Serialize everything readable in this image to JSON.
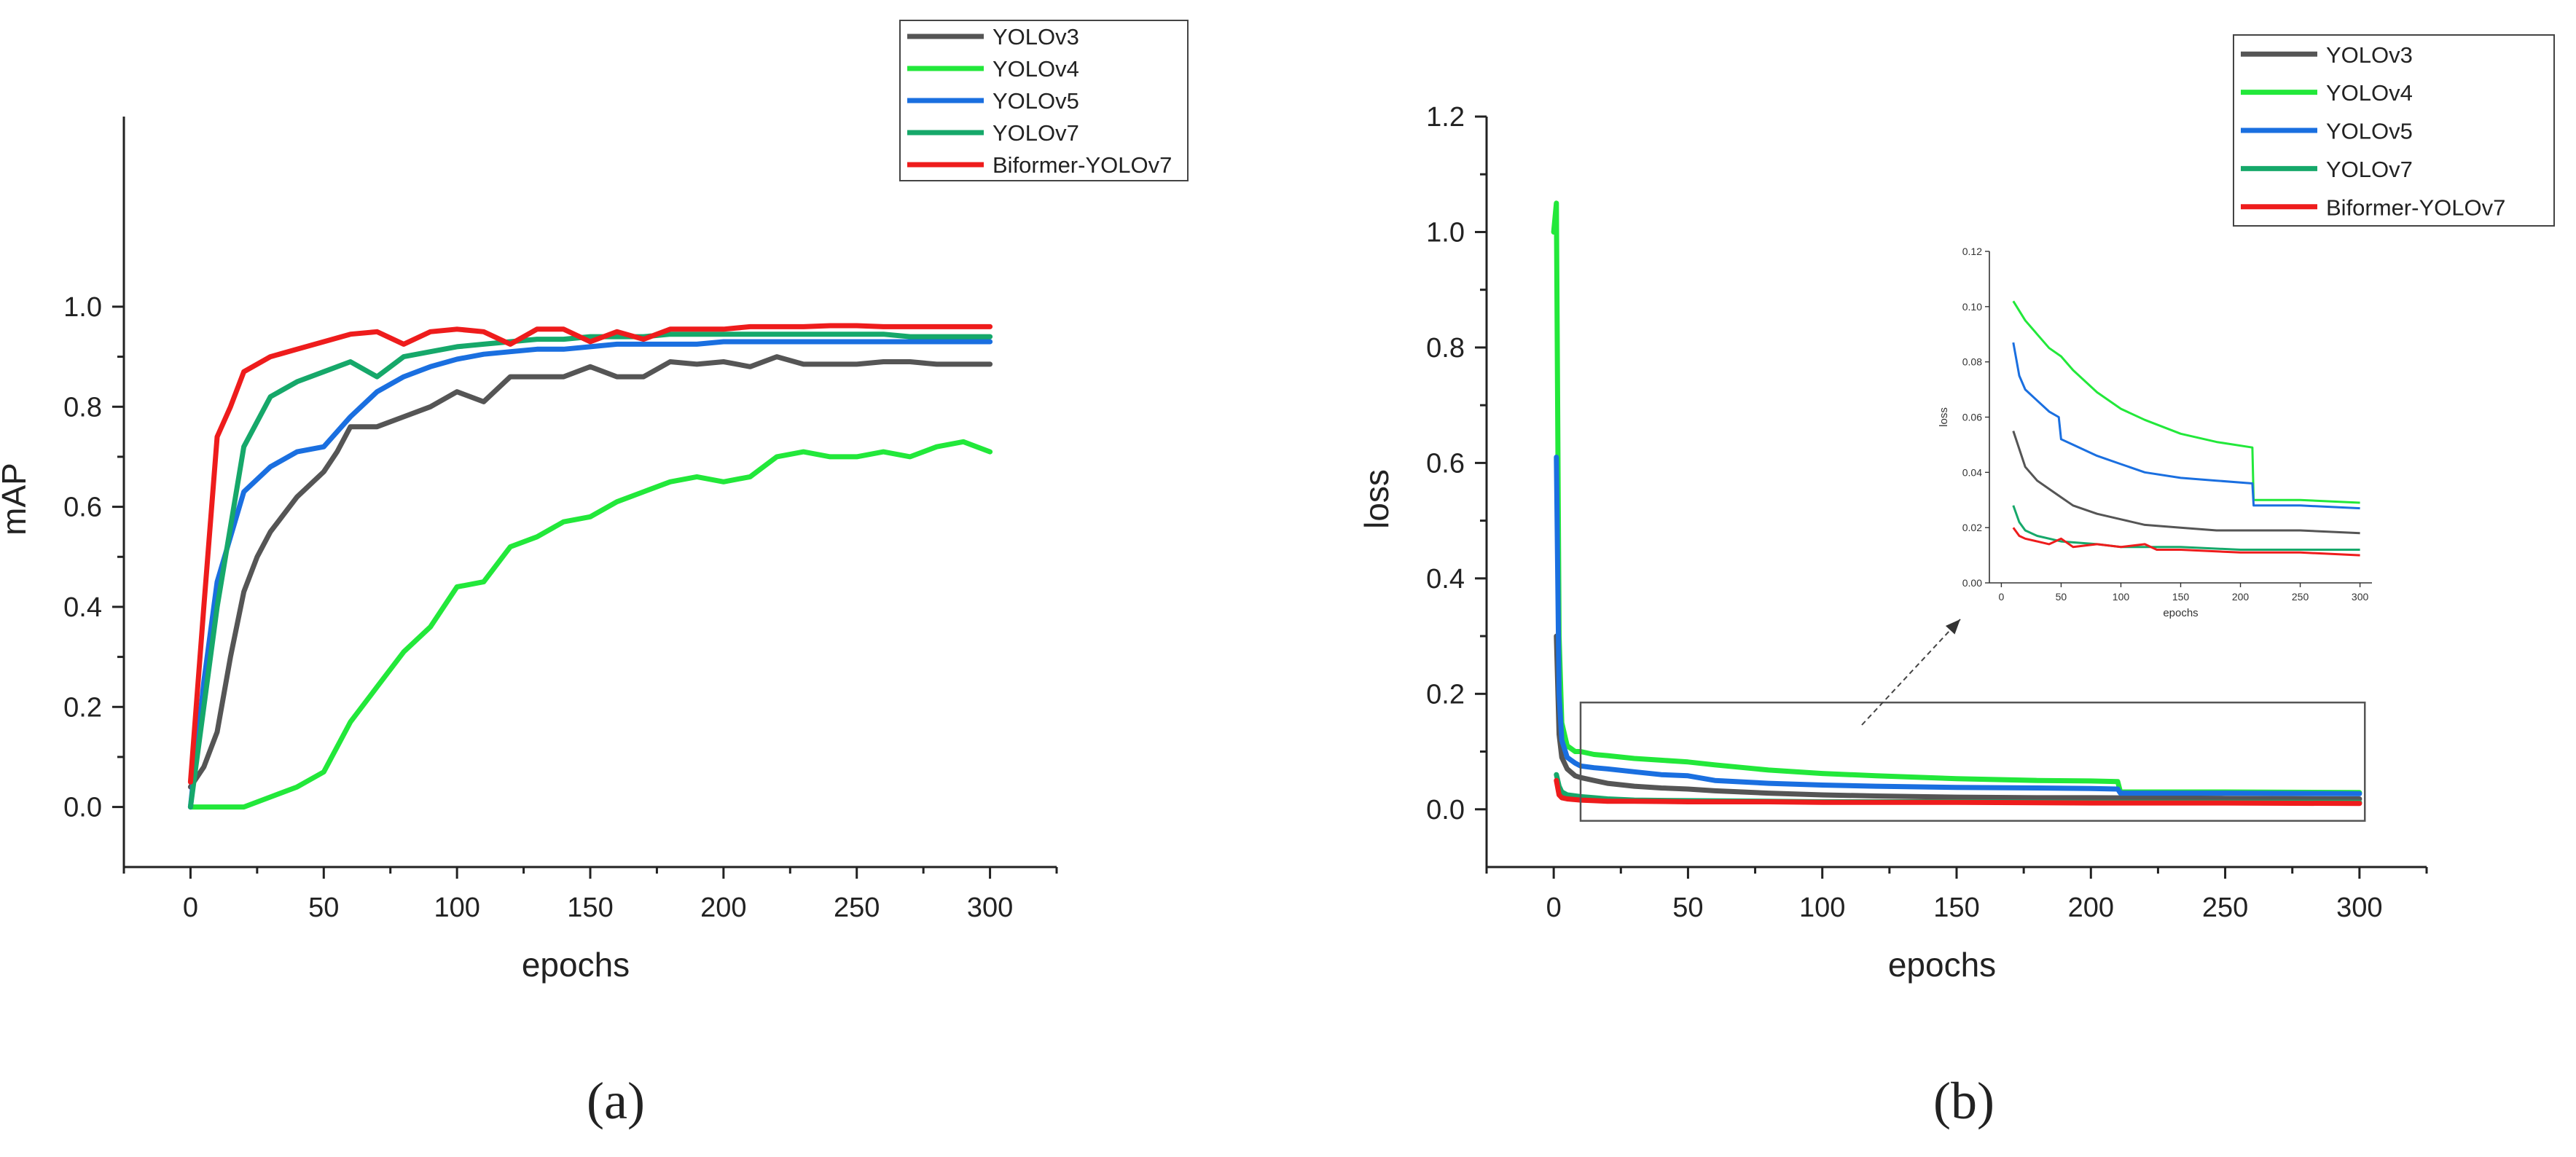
{
  "captions": [
    "(a)",
    "(b)"
  ],
  "colors": {
    "YOLOv3": "#555555",
    "YOLOv4": "#22e83a",
    "YOLOv5": "#1a6fe0",
    "YOLOv7": "#16a86a",
    "Biformer-YOLOv7": "#ee1c1c"
  },
  "chart_data": [
    {
      "type": "line",
      "id": "a",
      "title": "",
      "xlabel": "epochs",
      "ylabel": "mAP",
      "xlim": [
        -25,
        325
      ],
      "ylim": [
        -0.12,
        1.38
      ],
      "xticks": [
        0,
        50,
        100,
        150,
        200,
        250,
        300
      ],
      "yticks": [
        0.0,
        0.2,
        0.4,
        0.6,
        0.8,
        1.0
      ],
      "ytick_labels": [
        "0.0",
        "0.2",
        "0.4",
        "0.6",
        "0.8",
        "1.0"
      ],
      "legend_position": "top-right",
      "legend": [
        "YOLOv3",
        "YOLOv4",
        "YOLOv5",
        "YOLOv7",
        "Biformer-YOLOv7"
      ],
      "series": [
        {
          "name": "YOLOv3",
          "x": [
            0,
            5,
            10,
            15,
            20,
            25,
            30,
            40,
            50,
            55,
            60,
            70,
            80,
            90,
            100,
            110,
            120,
            130,
            140,
            150,
            160,
            170,
            180,
            190,
            200,
            210,
            220,
            230,
            240,
            250,
            260,
            270,
            280,
            290,
            300
          ],
          "y": [
            0.04,
            0.08,
            0.15,
            0.3,
            0.43,
            0.5,
            0.55,
            0.62,
            0.67,
            0.71,
            0.76,
            0.76,
            0.78,
            0.8,
            0.83,
            0.81,
            0.86,
            0.86,
            0.86,
            0.88,
            0.86,
            0.86,
            0.89,
            0.885,
            0.89,
            0.88,
            0.9,
            0.885,
            0.885,
            0.885,
            0.89,
            0.89,
            0.885,
            0.885,
            0.885
          ]
        },
        {
          "name": "YOLOv4",
          "x": [
            0,
            10,
            20,
            30,
            40,
            50,
            55,
            60,
            70,
            80,
            90,
            100,
            110,
            120,
            130,
            140,
            150,
            160,
            170,
            180,
            190,
            200,
            210,
            220,
            230,
            240,
            250,
            260,
            270,
            280,
            290,
            300
          ],
          "y": [
            0.0,
            0.0,
            0.0,
            0.02,
            0.04,
            0.07,
            0.12,
            0.17,
            0.24,
            0.31,
            0.36,
            0.44,
            0.45,
            0.52,
            0.54,
            0.57,
            0.58,
            0.61,
            0.63,
            0.65,
            0.66,
            0.65,
            0.66,
            0.7,
            0.71,
            0.7,
            0.7,
            0.71,
            0.7,
            0.72,
            0.73,
            0.71
          ]
        },
        {
          "name": "YOLOv5",
          "x": [
            0,
            5,
            10,
            20,
            30,
            40,
            50,
            60,
            70,
            80,
            90,
            100,
            110,
            120,
            130,
            140,
            150,
            160,
            170,
            180,
            190,
            200,
            210,
            220,
            230,
            240,
            250,
            260,
            270,
            280,
            290,
            300
          ],
          "y": [
            0.0,
            0.25,
            0.45,
            0.63,
            0.68,
            0.71,
            0.72,
            0.78,
            0.83,
            0.86,
            0.88,
            0.895,
            0.905,
            0.91,
            0.915,
            0.915,
            0.92,
            0.925,
            0.925,
            0.925,
            0.925,
            0.93,
            0.93,
            0.93,
            0.93,
            0.93,
            0.93,
            0.93,
            0.93,
            0.93,
            0.93,
            0.93
          ]
        },
        {
          "name": "YOLOv7",
          "x": [
            0,
            10,
            20,
            30,
            40,
            50,
            60,
            70,
            80,
            90,
            100,
            110,
            120,
            130,
            140,
            150,
            160,
            170,
            180,
            190,
            200,
            210,
            220,
            230,
            240,
            250,
            260,
            270,
            280,
            290,
            300
          ],
          "y": [
            0.0,
            0.4,
            0.72,
            0.82,
            0.85,
            0.87,
            0.89,
            0.86,
            0.9,
            0.91,
            0.92,
            0.925,
            0.93,
            0.935,
            0.935,
            0.94,
            0.94,
            0.94,
            0.945,
            0.945,
            0.945,
            0.945,
            0.945,
            0.945,
            0.945,
            0.945,
            0.945,
            0.94,
            0.94,
            0.94,
            0.94
          ]
        },
        {
          "name": "Biformer-YOLOv7",
          "x": [
            0,
            5,
            10,
            15,
            20,
            30,
            40,
            50,
            60,
            70,
            80,
            90,
            100,
            110,
            120,
            130,
            140,
            150,
            160,
            170,
            180,
            190,
            200,
            210,
            220,
            230,
            240,
            250,
            260,
            270,
            280,
            290,
            300
          ],
          "y": [
            0.05,
            0.4,
            0.74,
            0.8,
            0.87,
            0.9,
            0.915,
            0.93,
            0.945,
            0.95,
            0.925,
            0.95,
            0.955,
            0.95,
            0.925,
            0.955,
            0.955,
            0.93,
            0.95,
            0.935,
            0.955,
            0.955,
            0.955,
            0.96,
            0.96,
            0.96,
            0.962,
            0.962,
            0.96,
            0.96,
            0.96,
            0.96,
            0.96
          ]
        }
      ]
    },
    {
      "type": "line",
      "id": "b",
      "title": "",
      "xlabel": "epochs",
      "ylabel": "loss",
      "xlim": [
        -25,
        325
      ],
      "ylim": [
        -0.1,
        1.2
      ],
      "xticks": [
        0,
        50,
        100,
        150,
        200,
        250,
        300
      ],
      "yticks": [
        0.0,
        0.2,
        0.4,
        0.6,
        0.8,
        1.0,
        1.2
      ],
      "ytick_labels": [
        "0.0",
        "0.2",
        "0.4",
        "0.6",
        "0.8",
        "1.0",
        "1.2"
      ],
      "legend_position": "top-right",
      "legend": [
        "YOLOv3",
        "YOLOv4",
        "YOLOv5",
        "YOLOv7",
        "Biformer-YOLOv7"
      ],
      "series": [
        {
          "name": "YOLOv3",
          "x": [
            1,
            2,
            3,
            5,
            8,
            10,
            15,
            20,
            30,
            40,
            50,
            60,
            80,
            100,
            120,
            150,
            180,
            200,
            250,
            300
          ],
          "y": [
            0.3,
            0.13,
            0.09,
            0.07,
            0.058,
            0.055,
            0.05,
            0.045,
            0.04,
            0.037,
            0.035,
            0.032,
            0.028,
            0.025,
            0.023,
            0.021,
            0.02,
            0.02,
            0.019,
            0.018
          ]
        },
        {
          "name": "YOLOv4",
          "x": [
            0,
            1,
            2,
            3,
            5,
            8,
            10,
            15,
            20,
            30,
            40,
            50,
            60,
            80,
            100,
            120,
            150,
            180,
            200,
            210,
            211,
            250,
            300
          ],
          "y": [
            1.0,
            1.05,
            0.3,
            0.15,
            0.11,
            0.1,
            0.1,
            0.095,
            0.093,
            0.088,
            0.085,
            0.082,
            0.077,
            0.068,
            0.062,
            0.058,
            0.053,
            0.05,
            0.049,
            0.048,
            0.03,
            0.03,
            0.029
          ]
        },
        {
          "name": "YOLOv5",
          "x": [
            1,
            2,
            3,
            5,
            8,
            10,
            15,
            20,
            30,
            40,
            50,
            60,
            80,
            100,
            120,
            150,
            180,
            200,
            210,
            211,
            250,
            300
          ],
          "y": [
            0.61,
            0.2,
            0.12,
            0.09,
            0.08,
            0.075,
            0.072,
            0.07,
            0.065,
            0.06,
            0.058,
            0.05,
            0.045,
            0.042,
            0.04,
            0.038,
            0.037,
            0.036,
            0.035,
            0.028,
            0.028,
            0.027
          ]
        },
        {
          "name": "YOLOv7",
          "x": [
            1,
            2,
            3,
            5,
            10,
            15,
            20,
            30,
            50,
            80,
            100,
            150,
            200,
            250,
            300
          ],
          "y": [
            0.06,
            0.04,
            0.03,
            0.025,
            0.022,
            0.02,
            0.018,
            0.016,
            0.015,
            0.014,
            0.013,
            0.013,
            0.012,
            0.012,
            0.012
          ]
        },
        {
          "name": "Biformer-YOLOv7",
          "x": [
            1,
            2,
            3,
            5,
            10,
            15,
            20,
            30,
            50,
            80,
            100,
            150,
            200,
            250,
            300
          ],
          "y": [
            0.05,
            0.025,
            0.02,
            0.018,
            0.016,
            0.015,
            0.014,
            0.014,
            0.013,
            0.013,
            0.012,
            0.012,
            0.011,
            0.011,
            0.01
          ]
        }
      ],
      "inset": {
        "xlabel": "epochs",
        "ylabel": "loss",
        "xlim": [
          -10,
          310
        ],
        "ylim": [
          0.0,
          0.12
        ],
        "xticks": [
          0,
          50,
          100,
          150,
          200,
          250,
          300
        ],
        "yticks": [
          0.0,
          0.02,
          0.04,
          0.06,
          0.08,
          0.1,
          0.12
        ],
        "ytick_labels": [
          "0.00",
          "0.02",
          "0.04",
          "0.06",
          "0.08",
          "0.10",
          "0.12"
        ],
        "series": [
          {
            "name": "YOLOv3",
            "x": [
              10,
              20,
              30,
              40,
              50,
              60,
              80,
              100,
              120,
              150,
              180,
              210,
              250,
              300
            ],
            "y": [
              0.055,
              0.042,
              0.037,
              0.034,
              0.031,
              0.028,
              0.025,
              0.023,
              0.021,
              0.02,
              0.019,
              0.019,
              0.019,
              0.018
            ]
          },
          {
            "name": "YOLOv4",
            "x": [
              10,
              20,
              30,
              40,
              50,
              60,
              80,
              100,
              120,
              150,
              180,
              210,
              211,
              250,
              300
            ],
            "y": [
              0.102,
              0.095,
              0.09,
              0.085,
              0.082,
              0.077,
              0.069,
              0.063,
              0.059,
              0.054,
              0.051,
              0.049,
              0.03,
              0.03,
              0.029
            ]
          },
          {
            "name": "YOLOv5",
            "x": [
              10,
              15,
              20,
              30,
              40,
              48,
              50,
              60,
              80,
              100,
              120,
              150,
              180,
              210,
              211,
              250,
              300
            ],
            "y": [
              0.087,
              0.075,
              0.07,
              0.066,
              0.062,
              0.06,
              0.052,
              0.05,
              0.046,
              0.043,
              0.04,
              0.038,
              0.037,
              0.036,
              0.028,
              0.028,
              0.027
            ]
          },
          {
            "name": "YOLOv7",
            "x": [
              10,
              15,
              20,
              30,
              50,
              80,
              100,
              150,
              200,
              250,
              300
            ],
            "y": [
              0.028,
              0.022,
              0.019,
              0.017,
              0.015,
              0.014,
              0.013,
              0.013,
              0.012,
              0.012,
              0.012
            ]
          },
          {
            "name": "Biformer-YOLOv7",
            "x": [
              10,
              15,
              20,
              30,
              40,
              50,
              60,
              80,
              100,
              120,
              130,
              150,
              200,
              250,
              300
            ],
            "y": [
              0.02,
              0.017,
              0.016,
              0.015,
              0.014,
              0.016,
              0.013,
              0.014,
              0.013,
              0.014,
              0.012,
              0.012,
              0.011,
              0.011,
              0.01
            ]
          }
        ]
      }
    }
  ]
}
